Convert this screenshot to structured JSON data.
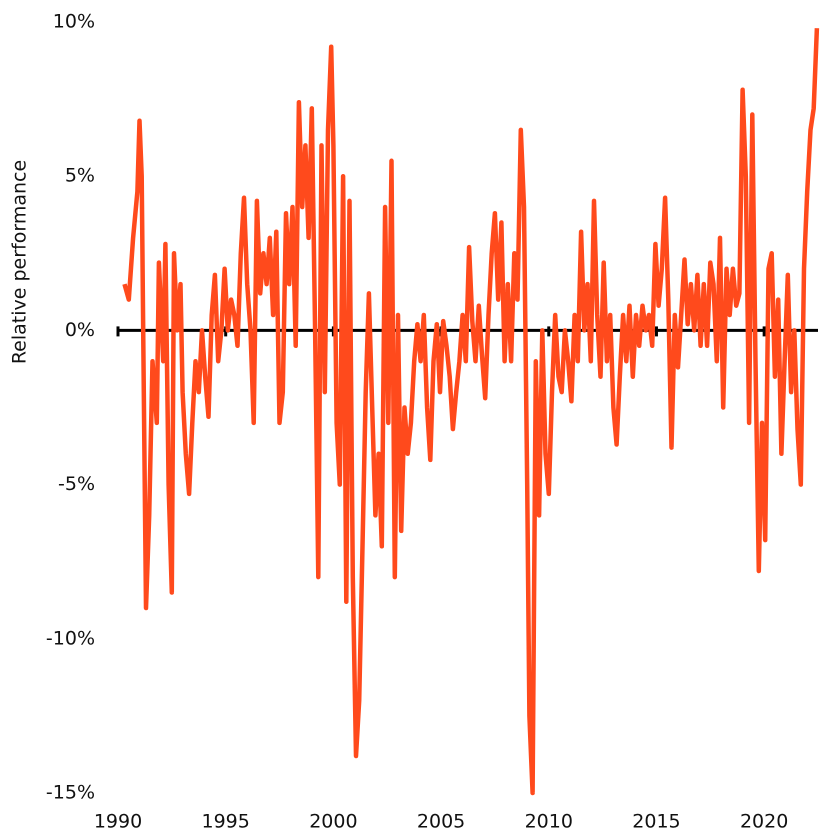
{
  "chart_data": {
    "type": "line",
    "y_label": "Relative performance",
    "color": "#ff4a1c",
    "xlim": [
      1990,
      2022.5
    ],
    "xticks": [
      1990,
      1995,
      2000,
      2005,
      2010,
      2015,
      2020
    ],
    "ylim": [
      -15,
      10
    ],
    "yticks": [
      {
        "value": -15,
        "label": "-15%"
      },
      {
        "value": -10,
        "label": "-10%"
      },
      {
        "value": -5,
        "label": "-5%"
      },
      {
        "value": 0,
        "label": "0%"
      },
      {
        "value": 5,
        "label": "5%"
      },
      {
        "value": 10,
        "label": "10%"
      }
    ],
    "x": [
      1990.3,
      1990.5,
      1990.7,
      1990.9,
      1991.0,
      1991.1,
      1991.2,
      1991.3,
      1991.45,
      1991.6,
      1991.8,
      1991.9,
      1992.1,
      1992.2,
      1992.35,
      1992.5,
      1992.6,
      1992.75,
      1992.9,
      1993.0,
      1993.15,
      1993.3,
      1993.45,
      1993.6,
      1993.75,
      1993.9,
      1994.05,
      1994.2,
      1994.35,
      1994.5,
      1994.65,
      1994.8,
      1994.95,
      1995.1,
      1995.25,
      1995.4,
      1995.55,
      1995.7,
      1995.85,
      1996.0,
      1996.15,
      1996.3,
      1996.45,
      1996.6,
      1996.75,
      1996.9,
      1997.05,
      1997.2,
      1997.35,
      1997.5,
      1997.65,
      1997.8,
      1997.95,
      1998.1,
      1998.25,
      1998.4,
      1998.55,
      1998.7,
      1998.85,
      1999.0,
      1999.15,
      1999.3,
      1999.45,
      1999.6,
      1999.75,
      1999.9,
      2000.0,
      2000.15,
      2000.3,
      2000.45,
      2000.6,
      2000.75,
      2000.9,
      2001.05,
      2001.2,
      2001.35,
      2001.5,
      2001.65,
      2001.8,
      2001.95,
      2002.1,
      2002.25,
      2002.4,
      2002.55,
      2002.7,
      2002.85,
      2003.0,
      2003.15,
      2003.3,
      2003.45,
      2003.6,
      2003.75,
      2003.9,
      2004.05,
      2004.2,
      2004.35,
      2004.5,
      2004.65,
      2004.8,
      2004.95,
      2005.1,
      2005.25,
      2005.4,
      2005.55,
      2005.7,
      2005.85,
      2006.0,
      2006.15,
      2006.3,
      2006.45,
      2006.6,
      2006.75,
      2006.9,
      2007.05,
      2007.2,
      2007.35,
      2007.5,
      2007.65,
      2007.8,
      2007.95,
      2008.1,
      2008.25,
      2008.4,
      2008.55,
      2008.7,
      2008.85,
      2009.0,
      2009.1,
      2009.25,
      2009.4,
      2009.55,
      2009.7,
      2009.85,
      2010.0,
      2010.15,
      2010.3,
      2010.45,
      2010.6,
      2010.75,
      2010.9,
      2011.05,
      2011.2,
      2011.35,
      2011.5,
      2011.65,
      2011.8,
      2011.95,
      2012.1,
      2012.25,
      2012.4,
      2012.55,
      2012.7,
      2012.85,
      2013.0,
      2013.15,
      2013.3,
      2013.45,
      2013.6,
      2013.75,
      2013.9,
      2014.05,
      2014.2,
      2014.35,
      2014.5,
      2014.65,
      2014.8,
      2014.95,
      2015.1,
      2015.25,
      2015.4,
      2015.55,
      2015.7,
      2015.85,
      2016.0,
      2016.15,
      2016.3,
      2016.45,
      2016.6,
      2016.75,
      2016.9,
      2017.05,
      2017.2,
      2017.35,
      2017.5,
      2017.65,
      2017.8,
      2017.95,
      2018.1,
      2018.25,
      2018.4,
      2018.55,
      2018.7,
      2018.85,
      2019.0,
      2019.15,
      2019.3,
      2019.45,
      2019.6,
      2019.75,
      2019.9,
      2020.05,
      2020.2,
      2020.35,
      2020.5,
      2020.65,
      2020.8,
      2020.95,
      2021.1,
      2021.25,
      2021.4,
      2021.55,
      2021.7,
      2021.85,
      2022.0,
      2022.15,
      2022.3,
      2022.45
    ],
    "values": [
      1.5,
      1.0,
      3.0,
      4.5,
      6.8,
      5,
      -2,
      -9,
      -6,
      -1,
      -3,
      2.2,
      -1,
      2.8,
      -5,
      -8.5,
      2.5,
      0,
      1.5,
      -2,
      -4,
      -5.3,
      -3,
      -1,
      -2,
      0,
      -1.5,
      -2.8,
      0.5,
      1.8,
      -1,
      0,
      2,
      0,
      1,
      0.5,
      -0.5,
      2.5,
      4.3,
      1.5,
      0,
      -3,
      4.2,
      1.2,
      2.5,
      1.5,
      3,
      0.5,
      3.2,
      -3,
      -2,
      3.8,
      1.5,
      4,
      -0.5,
      7.4,
      4,
      6,
      3,
      7.2,
      0,
      -8,
      6,
      -2,
      6.5,
      9.2,
      6,
      -3,
      -5,
      5,
      -8.8,
      4.2,
      -8,
      -13.8,
      -12,
      -7,
      -2,
      1.2,
      -2.5,
      -6,
      -4,
      -7,
      4,
      -3,
      5.5,
      -8,
      0.5,
      -6.5,
      -2.5,
      -4,
      -3,
      -1,
      0.2,
      -1,
      0.5,
      -2.5,
      -4.2,
      -1,
      0.2,
      -2,
      0.3,
      -0.5,
      -1.5,
      -3.2,
      -2,
      -1,
      0.5,
      -1,
      2.7,
      0.3,
      -1,
      0.8,
      -0.8,
      -2.2,
      0.5,
      2.5,
      3.8,
      1,
      3.5,
      -1,
      1.5,
      -1,
      2.5,
      1,
      6.5,
      4,
      -5,
      -12.5,
      -15,
      -1,
      -6,
      0,
      -4,
      -5.3,
      -2,
      0.5,
      -1.5,
      -2,
      0,
      -1,
      -2.3,
      0.5,
      -1,
      3.2,
      0,
      1.5,
      -1,
      4.2,
      0.5,
      -1.5,
      2.2,
      -1,
      0.5,
      -2.5,
      -3.7,
      -1.5,
      0.5,
      -1,
      0.8,
      -1.5,
      0.5,
      -0.5,
      0.8,
      0,
      0.5,
      -0.5,
      2.8,
      0.8,
      2,
      4.3,
      1,
      -3.8,
      0.5,
      -1.2,
      0.5,
      2.3,
      0.2,
      1.5,
      0,
      1.8,
      -0.5,
      1.5,
      -0.5,
      2.2,
      1.5,
      -1,
      3,
      -2.5,
      2,
      0.5,
      2,
      0.8,
      1.2,
      7.8,
      5,
      -3,
      7,
      -1,
      -7.8,
      -3,
      -6.8,
      2,
      2.5,
      -1.5,
      1,
      -4,
      -1,
      1.8,
      -2,
      0,
      -3.2,
      -5,
      2,
      4.5,
      6.5,
      7.2,
      9.8
    ]
  }
}
